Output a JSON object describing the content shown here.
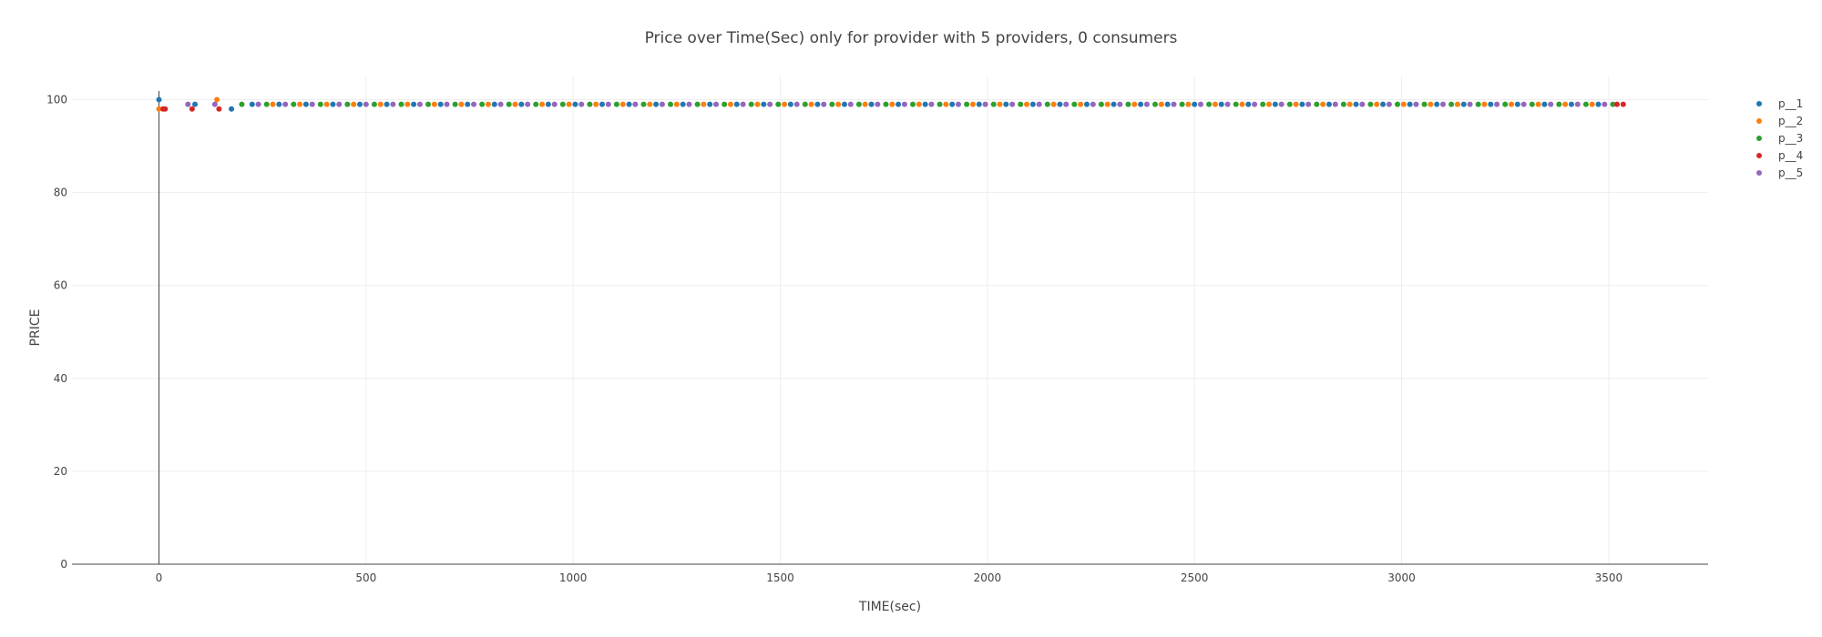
{
  "chart_data": {
    "type": "scatter",
    "title": "Price over Time(Sec) only for provider with 5 providers, 0 consumers",
    "xlabel": "TIME(sec)",
    "ylabel": "PRICE",
    "xlim": [
      -210,
      3740
    ],
    "ylim": [
      0,
      105
    ],
    "x_ticks": [
      0,
      500,
      1000,
      1500,
      2000,
      2500,
      3000,
      3500
    ],
    "y_ticks": [
      0,
      20,
      40,
      60,
      80,
      100
    ],
    "grid": true,
    "legend_position": "top-right",
    "series": [
      {
        "name": "p__1",
        "color": "#1f77b4",
        "start_points": [
          [
            0,
            100
          ],
          [
            87,
            99
          ],
          [
            175,
            98
          ]
        ],
        "regular_points": {
          "x_start": 225,
          "x_end": 3510,
          "step": 65,
          "value": 99
        }
      },
      {
        "name": "p__2",
        "color": "#ff7f0e",
        "start_points": [
          [
            0,
            98
          ],
          [
            140,
            100
          ]
        ],
        "regular_points": {
          "x_start": 275,
          "x_end": 3490,
          "step": 65,
          "value": 99
        }
      },
      {
        "name": "p__3",
        "color": "#2ca02c",
        "start_points": [
          [
            200,
            99
          ]
        ],
        "regular_points": {
          "x_start": 260,
          "x_end": 3515,
          "step": 65,
          "value": 99
        }
      },
      {
        "name": "p__4",
        "color": "#d62728",
        "start_points": [
          [
            10,
            98
          ],
          [
            15,
            98
          ],
          [
            80,
            98
          ],
          [
            145,
            98
          ]
        ],
        "regular_points": {
          "x_start": 3520,
          "x_end": 3535,
          "step": 15,
          "value": 99
        }
      },
      {
        "name": "p__5",
        "color": "#9467bd",
        "start_points": [
          [
            70,
            99
          ],
          [
            135,
            99
          ]
        ],
        "regular_points": {
          "x_start": 240,
          "x_end": 3500,
          "step": 65,
          "value": 99
        }
      }
    ]
  }
}
